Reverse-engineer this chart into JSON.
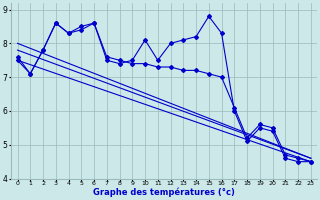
{
  "xlabel": "Graphe des températures (°c)",
  "xlim": [
    -0.5,
    23.5
  ],
  "ylim": [
    4,
    9.2
  ],
  "yticks": [
    4,
    5,
    6,
    7,
    8,
    9
  ],
  "xticks": [
    0,
    1,
    2,
    3,
    4,
    5,
    6,
    7,
    8,
    9,
    10,
    11,
    12,
    13,
    14,
    15,
    16,
    17,
    18,
    19,
    20,
    21,
    22,
    23
  ],
  "bg_color": "#cce8e8",
  "line_color": "#0000cc",
  "grid_color": "#99bbbb",
  "jagged_x": [
    0,
    1,
    2,
    3,
    4,
    5,
    6,
    7,
    8,
    9,
    10,
    11,
    12,
    13,
    14,
    15,
    16,
    17,
    18,
    19,
    20,
    21,
    22,
    23
  ],
  "jagged_y": [
    7.5,
    7.1,
    7.8,
    8.6,
    8.3,
    8.5,
    8.6,
    7.5,
    7.4,
    7.5,
    8.1,
    7.5,
    8.0,
    8.1,
    8.2,
    8.8,
    8.3,
    6.0,
    5.1,
    5.5,
    5.4,
    4.6,
    4.5,
    4.5
  ],
  "trend1_x": [
    0,
    23
  ],
  "trend1_y": [
    7.5,
    4.5
  ],
  "trend2_x": [
    0,
    23
  ],
  "trend2_y": [
    7.8,
    4.6
  ],
  "trend3_x": [
    0,
    23
  ],
  "trend3_y": [
    8.0,
    4.6
  ],
  "smooth_x": [
    0,
    1,
    2,
    3,
    4,
    5,
    6,
    7,
    8,
    9,
    10,
    11,
    12,
    13,
    14,
    15,
    16,
    17,
    18,
    19,
    20,
    21,
    22,
    23
  ],
  "smooth_y": [
    7.6,
    7.1,
    7.8,
    8.6,
    8.3,
    8.4,
    8.6,
    7.6,
    7.5,
    7.4,
    7.4,
    7.3,
    7.3,
    7.2,
    7.2,
    7.1,
    7.0,
    6.1,
    5.2,
    5.6,
    5.5,
    4.7,
    4.6,
    4.5
  ]
}
